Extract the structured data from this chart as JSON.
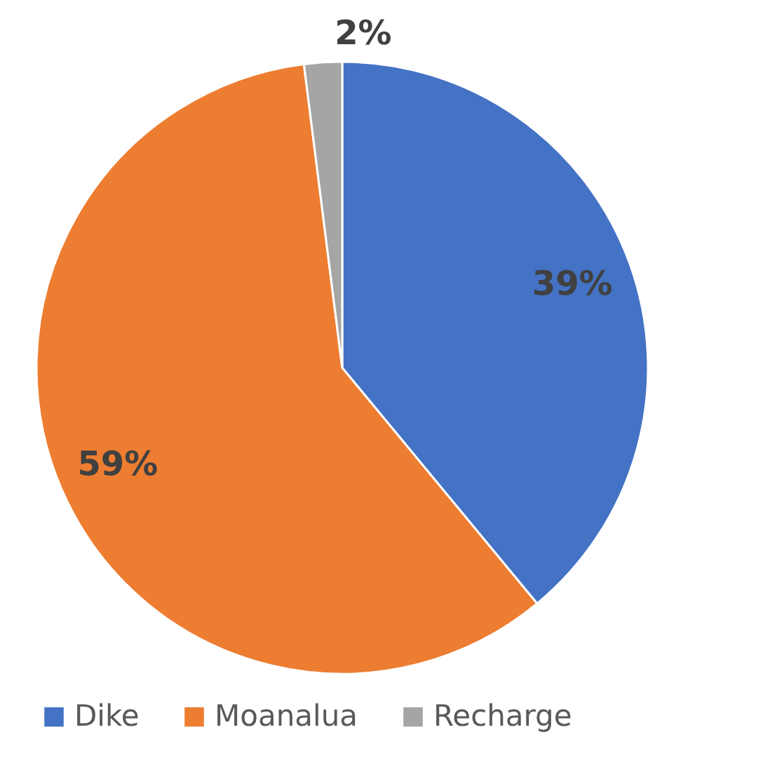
{
  "chart_data": {
    "type": "pie",
    "categories": [
      "Dike",
      "Moanalua",
      "Recharge"
    ],
    "values": [
      39,
      59,
      2
    ],
    "colors": [
      "#4472c4",
      "#ed7d31",
      "#a5a5a5"
    ],
    "value_labels": [
      "39%",
      "59%",
      "2%"
    ],
    "legend": "bottom"
  }
}
